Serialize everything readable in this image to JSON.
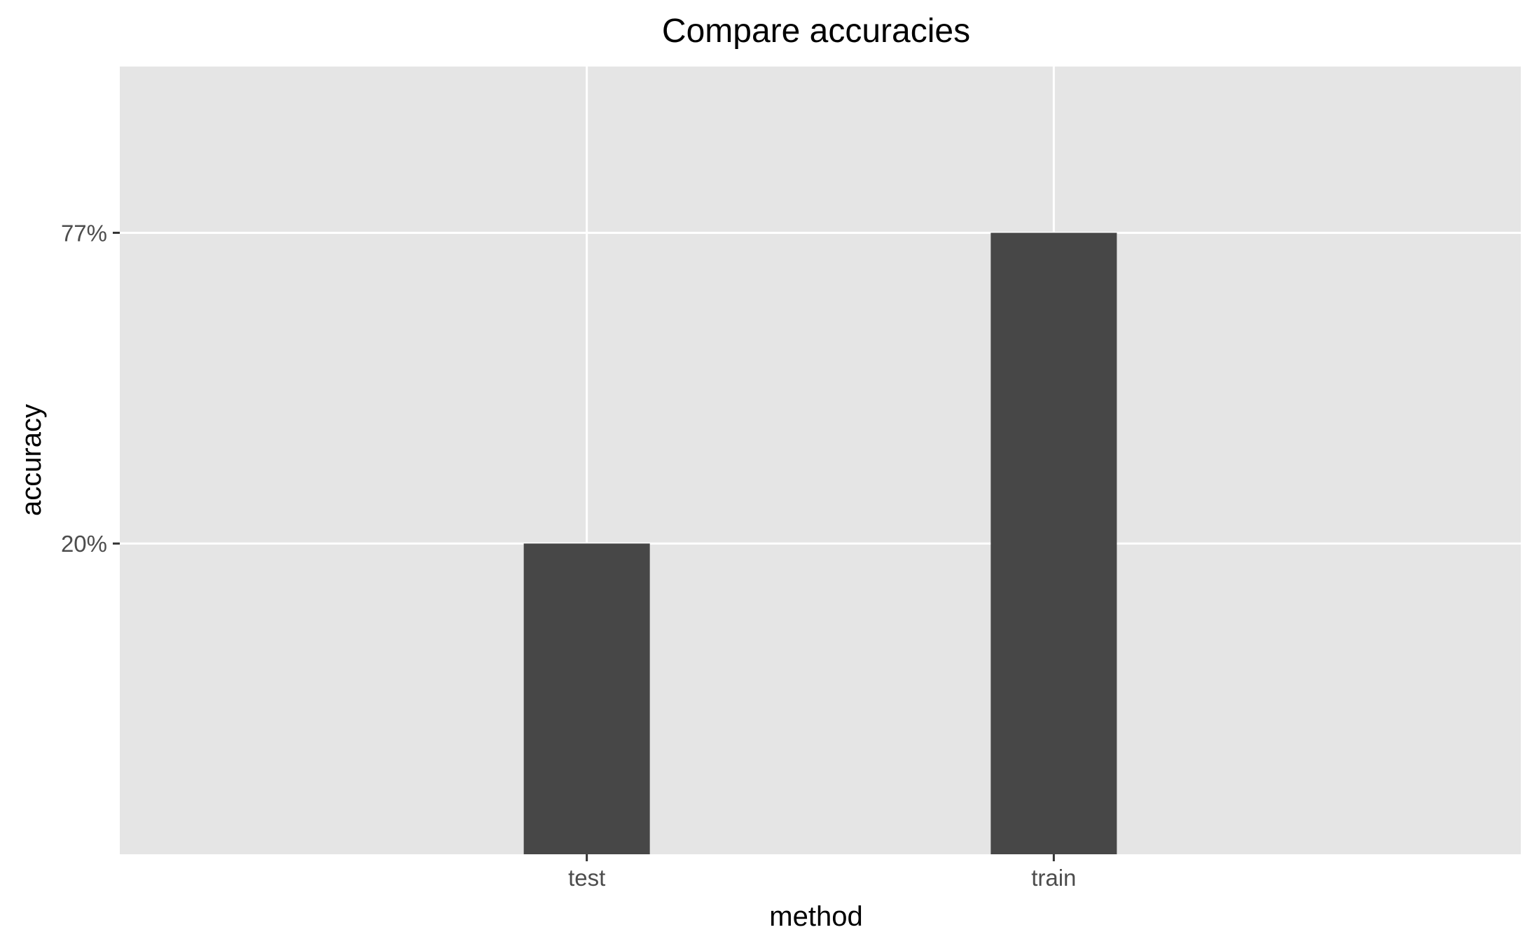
{
  "chart_data": {
    "type": "bar",
    "title": "Compare accuracies",
    "xlabel": "method",
    "ylabel": "accuracy",
    "categories": [
      "test",
      "train"
    ],
    "values": [
      0.2,
      0.77
    ],
    "ylim": [
      -0.37,
      1.075
    ],
    "yticks": [
      0.2,
      0.77
    ],
    "ytick_labels": [
      "20%",
      "77%"
    ],
    "grid": true,
    "legend": "none",
    "colors": {
      "panel": "#e5e5e5",
      "grid": "#ffffff",
      "bar": "#474747",
      "tick": "#333333"
    }
  }
}
